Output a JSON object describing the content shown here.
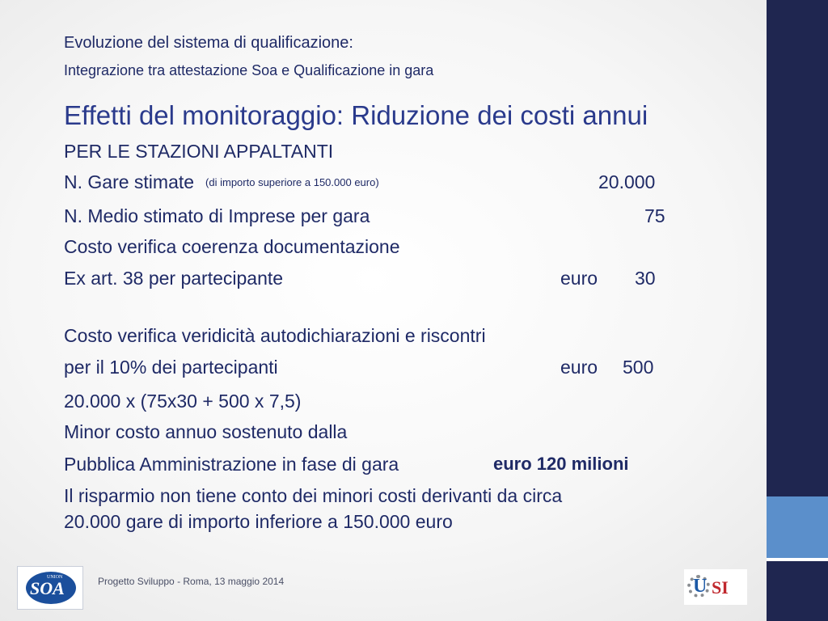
{
  "header": {
    "title": "Evoluzione del sistema di qualificazione:",
    "subtitle": "Integrazione tra attestazione Soa e Qualificazione in gara"
  },
  "slide": {
    "title": "Effetti del monitoraggio: Riduzione dei costi annui",
    "section": "PER LE STAZIONI APPALTANTI",
    "gare_label": "N. Gare stimate",
    "gare_note": "(di importo superiore a 150.000 euro)",
    "gare_value": "20.000",
    "imprese_label": "N. Medio stimato di Imprese per gara",
    "imprese_value": "75",
    "coerenza_label": "Costo verifica coerenza documentazione",
    "art38_label": "Ex art. 38 per partecipante",
    "art38_currency": "euro",
    "art38_value": "30",
    "veridicita_label": "Costo verifica veridicità autodichiarazioni e riscontri",
    "perc_label": "per il 10% dei partecipanti",
    "perc_currency": "euro",
    "perc_value": "500",
    "formula": "20.000 x (75x30 + 500 x 7,5)",
    "minor_label": "Minor costo annuo sostenuto dalla",
    "pa_label": "Pubblica Amministrazione  in fase di gara",
    "pa_value": "euro 120 milioni",
    "note_line1": "Il risparmio non tiene conto dei minori costi derivanti da circa",
    "note_line2": "20.000 gare di importo inferiore a 150.000 euro"
  },
  "footer": {
    "text": "Progetto Sviluppo - Roma, 13 maggio 2014",
    "logo_left": {
      "union": "UNION",
      "soa": "SOA"
    },
    "logo_right": {
      "u": "U",
      "si": "SI"
    }
  },
  "colors": {
    "text": "#1f2a66",
    "title": "#2a3a8c",
    "sidebar_dark": "#1f2650",
    "sidebar_light": "#5b8fcb"
  }
}
